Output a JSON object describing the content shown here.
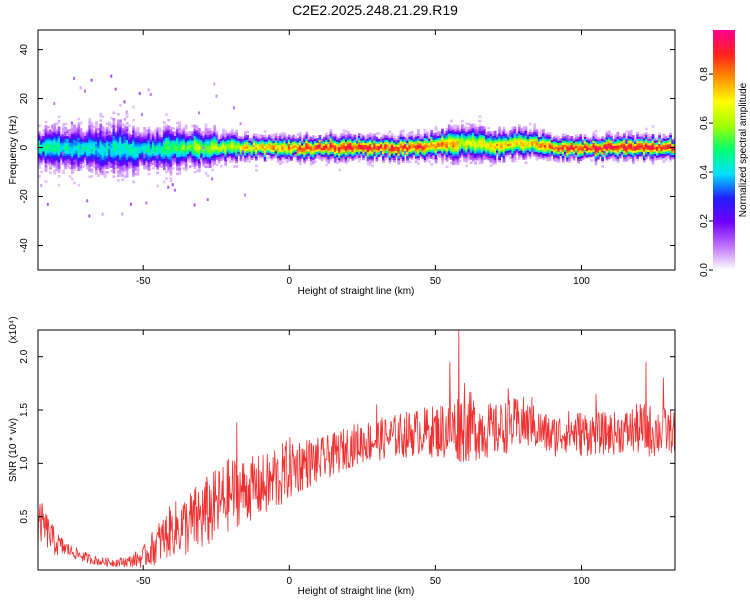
{
  "page": {
    "title": "C2E2.2025.248.21.29.R19"
  },
  "colorbar": {
    "label": "Normalized spectral amplitude",
    "ticks": [
      "0.0",
      "0.2",
      "0.4",
      "0.6",
      "0.8"
    ],
    "tick_values": [
      0.0,
      0.2,
      0.4,
      0.6,
      0.8
    ],
    "range": [
      0,
      0.98
    ],
    "gradient": [
      "#ffffff",
      "#c070ff",
      "#7000ff",
      "#2020ff",
      "#00e0ff",
      "#00ff70",
      "#a0ff00",
      "#ffff00",
      "#ff9000",
      "#ff2020",
      "#ff0090"
    ]
  },
  "chart_data": [
    {
      "type": "heatmap",
      "xlabel": "Height of straight line (km)",
      "ylabel": "Frequency (Hz)",
      "xlim": [
        -86,
        132
      ],
      "ylim": [
        -50,
        48
      ],
      "xticks": [
        -50,
        0,
        50,
        100
      ],
      "yticks": [
        40,
        20,
        0,
        -20,
        -40
      ],
      "band": {
        "center_freq": [
          [
            -86,
            0
          ],
          [
            -70,
            0
          ],
          [
            -65,
            -1
          ],
          [
            -60,
            0
          ],
          [
            -50,
            -1
          ],
          [
            -40,
            0
          ],
          [
            -30,
            0
          ],
          [
            -20,
            0
          ],
          [
            -10,
            0
          ],
          [
            0,
            0
          ],
          [
            20,
            0
          ],
          [
            40,
            0
          ],
          [
            50,
            1
          ],
          [
            60,
            2
          ],
          [
            70,
            1
          ],
          [
            80,
            2
          ],
          [
            90,
            0
          ],
          [
            100,
            0
          ],
          [
            110,
            0
          ],
          [
            120,
            0
          ],
          [
            132,
            0
          ]
        ],
        "half_width_hz": [
          [
            -86,
            7
          ],
          [
            -70,
            8
          ],
          [
            -65,
            10
          ],
          [
            -60,
            9
          ],
          [
            -50,
            8
          ],
          [
            -40,
            7
          ],
          [
            -30,
            6
          ],
          [
            -20,
            5
          ],
          [
            -10,
            4
          ],
          [
            0,
            4
          ],
          [
            20,
            4
          ],
          [
            40,
            4
          ],
          [
            50,
            5
          ],
          [
            60,
            6
          ],
          [
            70,
            5
          ],
          [
            80,
            5
          ],
          [
            90,
            4
          ],
          [
            100,
            4
          ],
          [
            110,
            4
          ],
          [
            120,
            4
          ],
          [
            132,
            4
          ]
        ],
        "peak_amplitude": [
          [
            -86,
            0.5
          ],
          [
            -70,
            0.45
          ],
          [
            -60,
            0.45
          ],
          [
            -50,
            0.45
          ],
          [
            -40,
            0.55
          ],
          [
            -30,
            0.6
          ],
          [
            -20,
            0.65
          ],
          [
            -10,
            0.8
          ],
          [
            0,
            0.85
          ],
          [
            10,
            0.95
          ],
          [
            20,
            0.95
          ],
          [
            30,
            0.95
          ],
          [
            40,
            0.95
          ],
          [
            50,
            0.85
          ],
          [
            60,
            0.7
          ],
          [
            70,
            0.75
          ],
          [
            80,
            0.75
          ],
          [
            90,
            0.9
          ],
          [
            100,
            0.95
          ],
          [
            110,
            0.95
          ],
          [
            120,
            0.95
          ],
          [
            132,
            0.95
          ]
        ]
      }
    },
    {
      "type": "line",
      "xlabel": "Height of straight line (km)",
      "ylabel": "SNR (10 * v/v)",
      "y_multiplier": "(x10⁴)",
      "xlim": [
        -86,
        132
      ],
      "ylim": [
        0,
        2.25
      ],
      "xticks": [
        -50,
        0,
        50,
        100
      ],
      "yticks": [
        0.5,
        1.0,
        1.5,
        2.0
      ],
      "color": "#f03030",
      "series": [
        {
          "envelope_x": [
            -86,
            -85,
            -80,
            -75,
            -70,
            -65,
            -60,
            -55,
            -50,
            -45,
            -40,
            -35,
            -30,
            -25,
            -20,
            -15,
            -10,
            -5,
            0,
            5,
            10,
            15,
            20,
            25,
            30,
            35,
            40,
            45,
            50,
            55,
            60,
            65,
            70,
            75,
            80,
            85,
            90,
            95,
            100,
            105,
            110,
            115,
            120,
            125,
            132
          ],
          "y_mean": [
            0.35,
            0.45,
            0.25,
            0.18,
            0.12,
            0.08,
            0.07,
            0.08,
            0.12,
            0.25,
            0.38,
            0.42,
            0.5,
            0.6,
            0.72,
            0.75,
            0.78,
            0.82,
            0.95,
            1.0,
            1.02,
            1.08,
            1.15,
            1.2,
            1.22,
            1.25,
            1.27,
            1.3,
            1.3,
            1.32,
            1.35,
            1.33,
            1.3,
            1.35,
            1.38,
            1.32,
            1.25,
            1.3,
            1.28,
            1.28,
            1.28,
            1.3,
            1.32,
            1.3,
            1.3
          ],
          "y_spread": [
            0.25,
            0.2,
            0.12,
            0.06,
            0.05,
            0.04,
            0.04,
            0.05,
            0.1,
            0.2,
            0.25,
            0.3,
            0.35,
            0.35,
            0.35,
            0.3,
            0.3,
            0.3,
            0.3,
            0.25,
            0.22,
            0.2,
            0.2,
            0.2,
            0.2,
            0.2,
            0.22,
            0.22,
            0.25,
            0.3,
            0.35,
            0.3,
            0.25,
            0.25,
            0.25,
            0.2,
            0.2,
            0.2,
            0.22,
            0.2,
            0.2,
            0.2,
            0.25,
            0.25,
            0.2
          ],
          "peaks": [
            [
              -18,
              1.38
            ],
            [
              -5,
              1.12
            ],
            [
              30,
              1.55
            ],
            [
              55,
              1.95
            ],
            [
              58,
              2.25
            ],
            [
              60,
              1.75
            ],
            [
              75,
              1.7
            ],
            [
              83,
              1.62
            ],
            [
              105,
              1.65
            ],
            [
              122,
              1.95
            ],
            [
              128,
              1.8
            ]
          ]
        }
      ]
    }
  ]
}
